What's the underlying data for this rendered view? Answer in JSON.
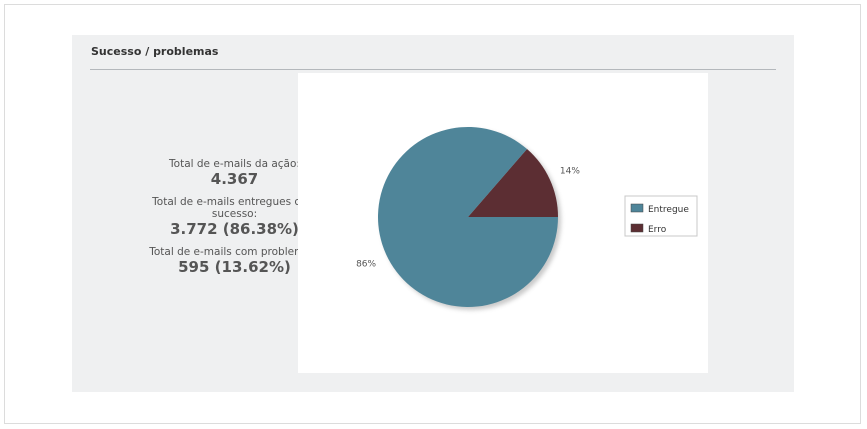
{
  "section": {
    "title": "Sucesso / problemas"
  },
  "stats": [
    {
      "label": "Total de e-mails da ação:",
      "value": "4.367"
    },
    {
      "label": "Total de e-mails entregues com sucesso:",
      "value": "3.772 (86.38%)"
    },
    {
      "label": "Total de e-mails com problemas:",
      "value": "595 (13.62%)"
    }
  ],
  "chart_data": {
    "type": "pie",
    "categories": [
      "Entregue",
      "Erro"
    ],
    "values": [
      86.38,
      13.62
    ],
    "data_labels": [
      "86%",
      "14%"
    ],
    "colors": [
      "#4f8599",
      "#5c2e33"
    ],
    "legend": "right",
    "title": ""
  }
}
